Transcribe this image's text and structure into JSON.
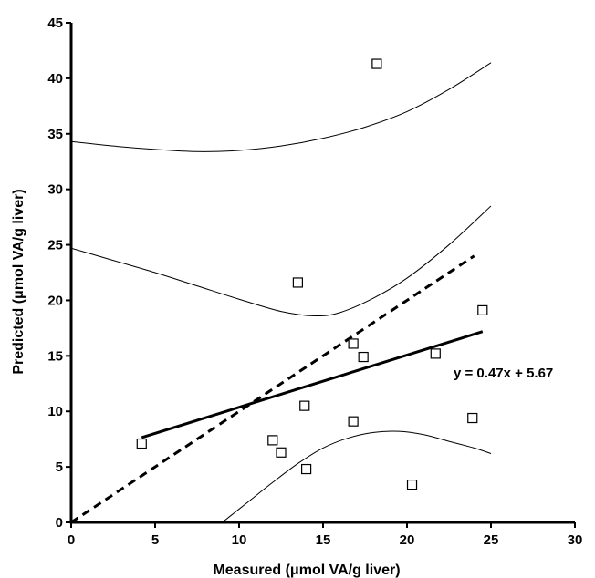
{
  "chart_data": {
    "type": "scatter",
    "title": "",
    "xlabel": "Measured (μmol VA/g liver)",
    "ylabel": "Predicted (μmol VA/g liver)",
    "xlim": [
      0,
      30
    ],
    "ylim": [
      0,
      45
    ],
    "x_ticks": [
      0,
      5,
      10,
      15,
      20,
      25,
      30
    ],
    "y_ticks": [
      0,
      5,
      10,
      15,
      20,
      25,
      30,
      35,
      40,
      45
    ],
    "grid": false,
    "legend": "none",
    "points": [
      {
        "x": 4.2,
        "y": 7.1
      },
      {
        "x": 12.0,
        "y": 7.4
      },
      {
        "x": 12.5,
        "y": 6.3
      },
      {
        "x": 13.5,
        "y": 21.6
      },
      {
        "x": 13.9,
        "y": 10.5
      },
      {
        "x": 14.0,
        "y": 4.8
      },
      {
        "x": 16.8,
        "y": 16.1
      },
      {
        "x": 16.8,
        "y": 9.1
      },
      {
        "x": 17.4,
        "y": 14.9
      },
      {
        "x": 18.2,
        "y": 41.3
      },
      {
        "x": 20.3,
        "y": 3.4
      },
      {
        "x": 21.7,
        "y": 15.2
      },
      {
        "x": 23.9,
        "y": 9.4
      },
      {
        "x": 24.5,
        "y": 19.1
      }
    ],
    "regression": {
      "slope": 0.47,
      "intercept": 5.67,
      "x_range": [
        4.2,
        24.5
      ],
      "equation": "y = 0.47x + 5.67"
    },
    "identity_line": {
      "x_range": [
        0,
        24
      ]
    },
    "upper_prediction_band": [
      {
        "x": 0,
        "y": 34.3
      },
      {
        "x": 2.5,
        "y": 33.9
      },
      {
        "x": 5,
        "y": 33.6
      },
      {
        "x": 7.5,
        "y": 33.4
      },
      {
        "x": 10,
        "y": 33.5
      },
      {
        "x": 12.5,
        "y": 33.9
      },
      {
        "x": 15,
        "y": 34.6
      },
      {
        "x": 17.5,
        "y": 35.6
      },
      {
        "x": 20,
        "y": 37.0
      },
      {
        "x": 22.5,
        "y": 39.0
      },
      {
        "x": 25,
        "y": 41.4
      }
    ],
    "upper_confidence_band": [
      {
        "x": 0,
        "y": 24.7
      },
      {
        "x": 2.5,
        "y": 23.6
      },
      {
        "x": 5,
        "y": 22.5
      },
      {
        "x": 7.5,
        "y": 21.3
      },
      {
        "x": 10,
        "y": 20.1
      },
      {
        "x": 12.5,
        "y": 19.0
      },
      {
        "x": 14.5,
        "y": 18.6
      },
      {
        "x": 16,
        "y": 18.9
      },
      {
        "x": 18,
        "y": 20.2
      },
      {
        "x": 20,
        "y": 22.0
      },
      {
        "x": 22.5,
        "y": 25.0
      },
      {
        "x": 25,
        "y": 28.5
      }
    ],
    "lower_confidence_band": [
      {
        "x": 9.0,
        "y": 0
      },
      {
        "x": 10.5,
        "y": 1.8
      },
      {
        "x": 12,
        "y": 3.6
      },
      {
        "x": 13.5,
        "y": 5.3
      },
      {
        "x": 15,
        "y": 6.7
      },
      {
        "x": 16.5,
        "y": 7.6
      },
      {
        "x": 18,
        "y": 8.1
      },
      {
        "x": 19.5,
        "y": 8.2
      },
      {
        "x": 21,
        "y": 7.9
      },
      {
        "x": 22.5,
        "y": 7.3
      },
      {
        "x": 24,
        "y": 6.7
      },
      {
        "x": 25,
        "y": 6.2
      }
    ]
  }
}
